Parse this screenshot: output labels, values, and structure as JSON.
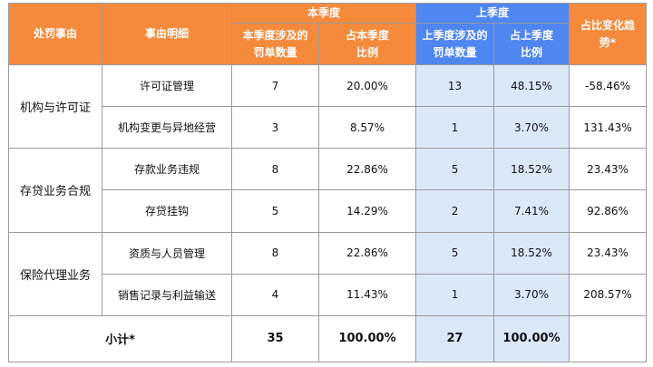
{
  "colors": {
    "header_orange": "#f58a3c",
    "header_blue": "#4f86ef",
    "prev_quarter_cell": "#dbe8f8"
  },
  "headers": {
    "reason": "处罚事由",
    "detail": "事由明细",
    "current_quarter": "本季度",
    "current_count": "本季度涉及的罚单数量",
    "current_ratio": "占本季度比例",
    "prev_quarter": "上季度",
    "prev_count": "上季度涉及的罚单数量",
    "prev_ratio": "占上季度比例",
    "trend": "占比变化趋势*"
  },
  "groups": [
    {
      "category": "机构与许可证",
      "rows": [
        {
          "detail": "许可证管理",
          "cur_count": "7",
          "cur_ratio": "20.00%",
          "prev_count": "13",
          "prev_ratio": "48.15%",
          "trend": "-58.46%"
        },
        {
          "detail": "机构变更与异地经营",
          "cur_count": "3",
          "cur_ratio": "8.57%",
          "prev_count": "1",
          "prev_ratio": "3.70%",
          "trend": "131.43%"
        }
      ]
    },
    {
      "category": "存贷业务合规",
      "rows": [
        {
          "detail": "存款业务违规",
          "cur_count": "8",
          "cur_ratio": "22.86%",
          "prev_count": "5",
          "prev_ratio": "18.52%",
          "trend": "23.43%"
        },
        {
          "detail": "存贷挂钩",
          "cur_count": "5",
          "cur_ratio": "14.29%",
          "prev_count": "2",
          "prev_ratio": "7.41%",
          "trend": "92.86%"
        }
      ]
    },
    {
      "category": "保险代理业务",
      "rows": [
        {
          "detail": "资质与人员管理",
          "cur_count": "8",
          "cur_ratio": "22.86%",
          "prev_count": "5",
          "prev_ratio": "18.52%",
          "trend": "23.43%"
        },
        {
          "detail": "销售记录与利益输送",
          "cur_count": "4",
          "cur_ratio": "11.43%",
          "prev_count": "1",
          "prev_ratio": "3.70%",
          "trend": "208.57%"
        }
      ]
    }
  ],
  "total": {
    "label": "小计*",
    "cur_count": "35",
    "cur_ratio": "100.00%",
    "prev_count": "27",
    "prev_ratio": "100.00%",
    "trend": ""
  }
}
